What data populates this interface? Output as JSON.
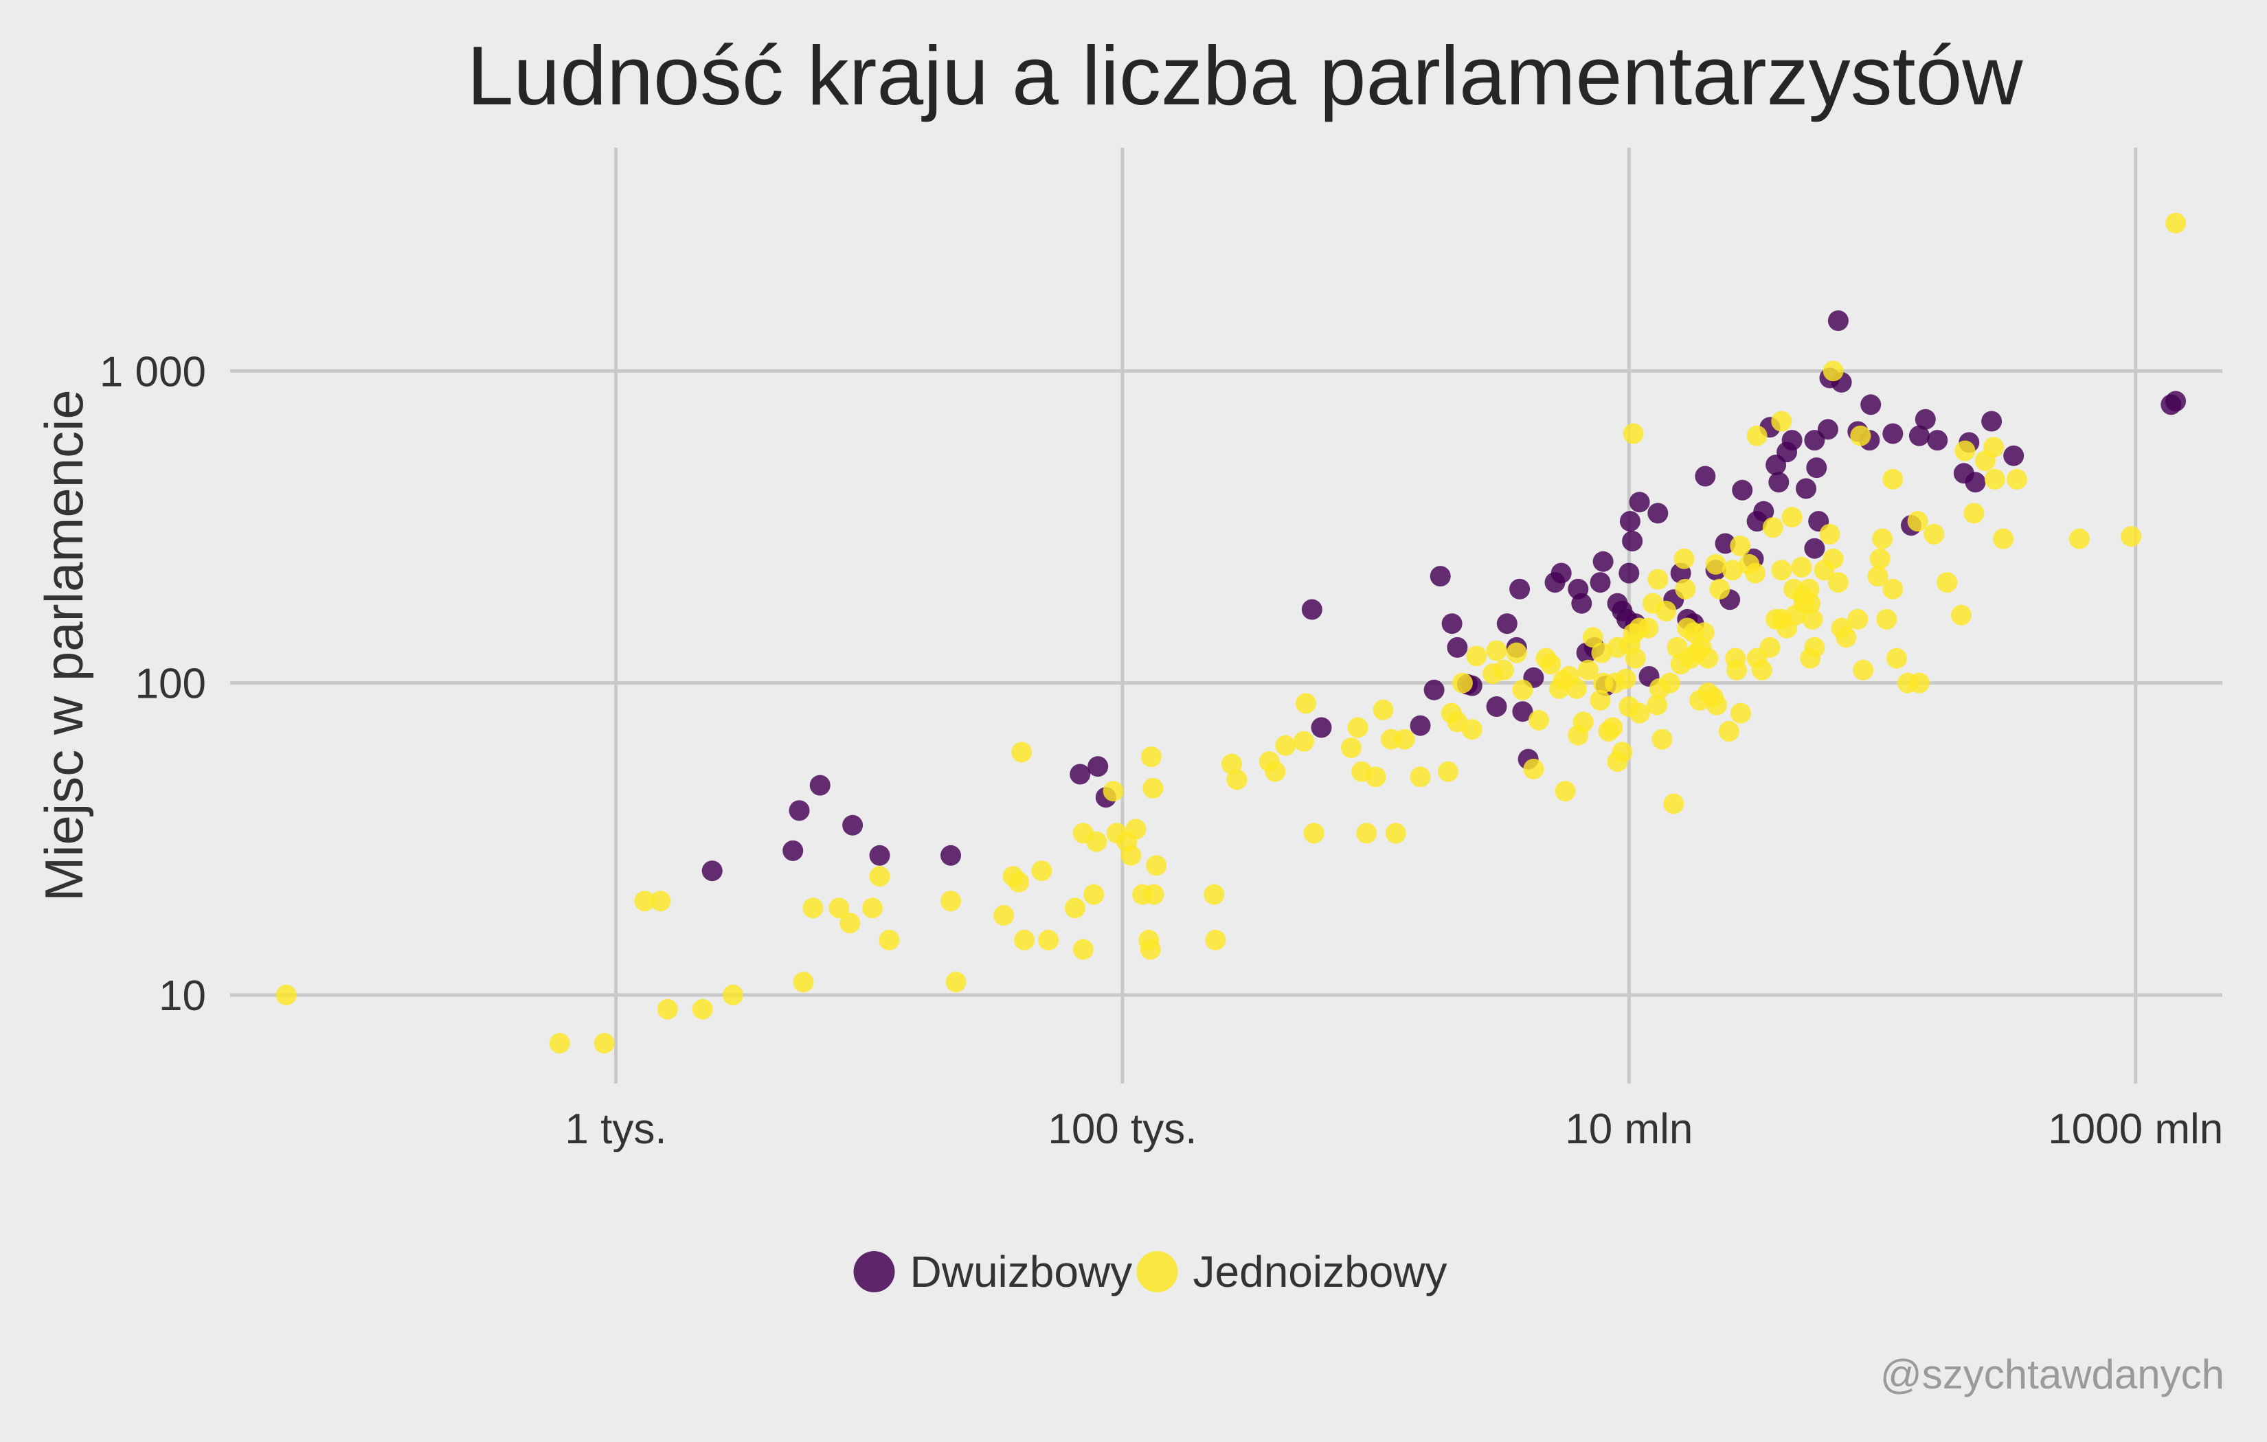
{
  "page": {
    "background": "#ececec",
    "credit": "@szychtawdanych"
  },
  "chart_data": {
    "type": "scatter",
    "title": "Ludność kraju a liczba parlamentarzystów",
    "xlabel": "",
    "ylabel": "Miejsc w parlamencie",
    "x_scale": "log10",
    "y_scale": "log10",
    "xlim": [
      30,
      2200000000
    ],
    "ylim": [
      5.2,
      5200
    ],
    "x_ticks": [
      {
        "value": 1000,
        "label": "1 tys."
      },
      {
        "value": 100000,
        "label": "100 tys."
      },
      {
        "value": 10000000,
        "label": "10 mln"
      },
      {
        "value": 1000000000,
        "label": "1000 mln"
      }
    ],
    "y_ticks": [
      {
        "value": 10,
        "label": "10"
      },
      {
        "value": 100,
        "label": "100"
      },
      {
        "value": 1000,
        "label": "1 000"
      }
    ],
    "grid": true,
    "legend": {
      "position": "bottom"
    },
    "series": [
      {
        "name": "Dwuizbowy",
        "color": "#440154",
        "points": [
          [
            2400,
            25
          ],
          [
            5000,
            29
          ],
          [
            5300,
            39
          ],
          [
            6400,
            47
          ],
          [
            8600,
            35
          ],
          [
            11000,
            28
          ],
          [
            21000,
            28
          ],
          [
            68000,
            51
          ],
          [
            80000,
            54
          ],
          [
            86000,
            43
          ],
          [
            560000,
            172
          ],
          [
            610000,
            72
          ],
          [
            1500000,
            73
          ],
          [
            1700000,
            95
          ],
          [
            1800000,
            220
          ],
          [
            2000000,
            155
          ],
          [
            2100000,
            130
          ],
          [
            2300000,
            99
          ],
          [
            2400000,
            98
          ],
          [
            3000000,
            84
          ],
          [
            3300000,
            155
          ],
          [
            3600000,
            130
          ],
          [
            3700000,
            200
          ],
          [
            3800000,
            81
          ],
          [
            4000000,
            57
          ],
          [
            4200000,
            104
          ],
          [
            5100000,
            210
          ],
          [
            5400000,
            225
          ],
          [
            6300000,
            200
          ],
          [
            6500000,
            180
          ],
          [
            6800000,
            125
          ],
          [
            7300000,
            130
          ],
          [
            7900000,
            245
          ],
          [
            7700000,
            210
          ],
          [
            8100000,
            98
          ],
          [
            9000000,
            180
          ],
          [
            9400000,
            170
          ],
          [
            9800000,
            160
          ],
          [
            10000000,
            225
          ],
          [
            10300000,
            285
          ],
          [
            10100000,
            330
          ],
          [
            10600000,
            155
          ],
          [
            11000000,
            380
          ],
          [
            12000000,
            105
          ],
          [
            13000000,
            350
          ],
          [
            15000000,
            185
          ],
          [
            16000000,
            225
          ],
          [
            17000000,
            160
          ],
          [
            18000000,
            155
          ],
          [
            20000000,
            460
          ],
          [
            22000000,
            230
          ],
          [
            24000000,
            280
          ],
          [
            25000000,
            185
          ],
          [
            28000000,
            415
          ],
          [
            31000000,
            250
          ],
          [
            32000000,
            330
          ],
          [
            34000000,
            355
          ],
          [
            36000000,
            660
          ],
          [
            38000000,
            500
          ],
          [
            39000000,
            440
          ],
          [
            42000000,
            550
          ],
          [
            44000000,
            600
          ],
          [
            50000000,
            420
          ],
          [
            54000000,
            600
          ],
          [
            55000000,
            490
          ],
          [
            56000000,
            330
          ],
          [
            54000000,
            270
          ],
          [
            61000000,
            650
          ],
          [
            62000000,
            950
          ],
          [
            67000000,
            1450
          ],
          [
            69000000,
            920
          ],
          [
            80000000,
            640
          ],
          [
            89000000,
            600
          ],
          [
            90000000,
            780
          ],
          [
            110000000,
            630
          ],
          [
            130000000,
            320
          ],
          [
            140000000,
            620
          ],
          [
            148000000,
            700
          ],
          [
            165000000,
            600
          ],
          [
            210000000,
            470
          ],
          [
            220000000,
            590
          ],
          [
            233000000,
            440
          ],
          [
            270000000,
            690
          ],
          [
            330000000,
            535
          ],
          [
            1380000000,
            780
          ],
          [
            1440000000,
            800
          ]
        ]
      },
      {
        "name": "Jednoizbowy",
        "color": "#fde725",
        "points": [
          [
            50,
            10
          ],
          [
            600,
            7
          ],
          [
            900,
            7
          ],
          [
            1300,
            20
          ],
          [
            1500,
            20
          ],
          [
            1600,
            9
          ],
          [
            2200,
            9
          ],
          [
            2900,
            10
          ],
          [
            5500,
            11
          ],
          [
            6000,
            19
          ],
          [
            7600,
            19
          ],
          [
            8400,
            17
          ],
          [
            10300,
            19
          ],
          [
            11000,
            24
          ],
          [
            12000,
            15
          ],
          [
            21000,
            20
          ],
          [
            22000,
            11
          ],
          [
            34000,
            18
          ],
          [
            37000,
            24
          ],
          [
            39000,
            23
          ],
          [
            41000,
            15
          ],
          [
            40000,
            60
          ],
          [
            48000,
            25
          ],
          [
            51000,
            15
          ],
          [
            65000,
            19
          ],
          [
            70000,
            33
          ],
          [
            70000,
            14
          ],
          [
            77000,
            21
          ],
          [
            79000,
            31
          ],
          [
            92000,
            45
          ],
          [
            95000,
            33
          ],
          [
            104000,
            31
          ],
          [
            108000,
            28
          ],
          [
            113000,
            34
          ],
          [
            120000,
            21
          ],
          [
            127000,
            15
          ],
          [
            133000,
            21
          ],
          [
            130000,
            58
          ],
          [
            129000,
            14
          ],
          [
            132000,
            46
          ],
          [
            136000,
            26
          ],
          [
            230000,
            21
          ],
          [
            233000,
            15
          ],
          [
            270000,
            55
          ],
          [
            283000,
            49
          ],
          [
            380000,
            56
          ],
          [
            401000,
            52
          ],
          [
            440000,
            63
          ],
          [
            520000,
            65
          ],
          [
            530000,
            86
          ],
          [
            570000,
            33
          ],
          [
            800000,
            62
          ],
          [
            850000,
            72
          ],
          [
            880000,
            52
          ],
          [
            920000,
            33
          ],
          [
            1000000,
            50
          ],
          [
            1070000,
            82
          ],
          [
            1150000,
            66
          ],
          [
            1200000,
            33
          ],
          [
            1300000,
            66
          ],
          [
            1500000,
            50
          ],
          [
            1930000,
            52
          ],
          [
            1990000,
            80
          ],
          [
            2100000,
            75
          ],
          [
            2200000,
            100
          ],
          [
            2400000,
            71
          ],
          [
            3200000,
            110
          ],
          [
            3600000,
            125
          ],
          [
            4200000,
            53
          ],
          [
            4900000,
            115
          ],
          [
            4700000,
            120
          ],
          [
            5500000,
            102
          ],
          [
            5600000,
            45
          ],
          [
            6300000,
            68
          ],
          [
            6600000,
            75
          ],
          [
            7200000,
            140
          ],
          [
            7800000,
            125
          ],
          [
            8600000,
            72
          ],
          [
            9000000,
            130
          ],
          [
            9000000,
            56
          ],
          [
            9700000,
            103
          ],
          [
            9400000,
            60
          ],
          [
            10000000,
            84
          ],
          [
            10100000,
            133
          ],
          [
            10400000,
            144
          ],
          [
            10600000,
            120
          ],
          [
            11000000,
            150
          ],
          [
            11000000,
            80
          ],
          [
            11900000,
            150
          ],
          [
            12400000,
            180
          ],
          [
            12900000,
            85
          ],
          [
            13200000,
            96
          ],
          [
            13500000,
            66
          ],
          [
            14000000,
            170
          ],
          [
            14500000,
            100
          ],
          [
            15000000,
            41
          ],
          [
            15500000,
            130
          ],
          [
            16000000,
            115
          ],
          [
            16700000,
            200
          ],
          [
            17000000,
            150
          ],
          [
            17500000,
            120
          ],
          [
            18000000,
            145
          ],
          [
            18500000,
            125
          ],
          [
            19000000,
            88
          ],
          [
            19300000,
            130
          ],
          [
            19800000,
            145
          ],
          [
            20500000,
            93
          ],
          [
            20500000,
            120
          ],
          [
            21500000,
            90
          ],
          [
            22000000,
            240
          ],
          [
            22200000,
            85
          ],
          [
            22800000,
            200
          ],
          [
            24800000,
            70
          ],
          [
            25600000,
            230
          ],
          [
            26300000,
            120
          ],
          [
            26600000,
            110
          ],
          [
            27600000,
            80
          ],
          [
            29800000,
            240
          ],
          [
            31500000,
            225
          ],
          [
            32000000,
            120
          ],
          [
            33500000,
            110
          ],
          [
            36000000,
            130
          ],
          [
            38000000,
            160
          ],
          [
            40000000,
            160
          ],
          [
            42000000,
            150
          ],
          [
            44700000,
            200
          ],
          [
            45400000,
            165
          ],
          [
            48600000,
            190
          ],
          [
            49000000,
            180
          ],
          [
            51400000,
            200
          ],
          [
            52000000,
            180
          ],
          [
            52000000,
            120
          ],
          [
            53000000,
            160
          ],
          [
            54000000,
            130
          ],
          [
            59000000,
            230
          ],
          [
            62000000,
            300
          ],
          [
            64000000,
            250
          ],
          [
            67000000,
            210
          ],
          [
            69000000,
            150
          ],
          [
            72000000,
            140
          ],
          [
            80000000,
            160
          ],
          [
            84000000,
            110
          ],
          [
            96000000,
            220
          ],
          [
            98000000,
            250
          ],
          [
            104000000,
            160
          ],
          [
            110000000,
            200
          ],
          [
            114000000,
            120
          ],
          [
            126000000,
            100
          ],
          [
            140000000,
            100
          ],
          [
            160000000,
            300
          ],
          [
            180000000,
            210
          ],
          [
            205000000,
            165
          ],
          [
            212000000,
            555
          ],
          [
            230000000,
            350
          ],
          [
            255000000,
            515
          ],
          [
            275000000,
            570
          ],
          [
            278000000,
            450
          ],
          [
            300000000,
            290
          ],
          [
            600000000,
            290
          ],
          [
            32000000,
            620
          ],
          [
            37000000,
            315
          ],
          [
            40000000,
            230
          ],
          [
            44000000,
            340
          ],
          [
            48000000,
            235
          ],
          [
            64000000,
            1000
          ],
          [
            82000000,
            620
          ],
          [
            13000000,
            215
          ],
          [
            10400000,
            630
          ],
          [
            16500000,
            250
          ],
          [
            27500000,
            275
          ],
          [
            110000000,
            450
          ],
          [
            100000000,
            290
          ],
          [
            138000000,
            330
          ],
          [
            1440000000,
            2980
          ],
          [
            960000000,
            295
          ],
          [
            340000000,
            450
          ],
          [
            40000000,
            690
          ],
          [
            3000000,
            127
          ],
          [
            2500000,
            122
          ],
          [
            2900000,
            107
          ],
          [
            3800000,
            95
          ],
          [
            4400000,
            76
          ],
          [
            5300000,
            96
          ],
          [
            5800000,
            105
          ],
          [
            6200000,
            96
          ],
          [
            6900000,
            110
          ],
          [
            7700000,
            88
          ],
          [
            7900000,
            100
          ],
          [
            8300000,
            70
          ],
          [
            8800000,
            100
          ]
        ]
      }
    ]
  }
}
